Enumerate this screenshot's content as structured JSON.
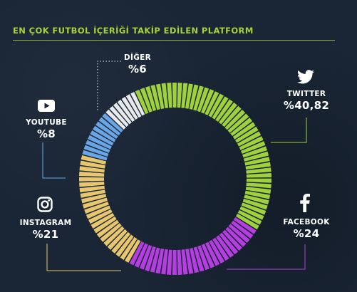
{
  "title": "EN ÇOK FUTBOL İÇERİĞİ TAKİP EDİLEN PLATFORM",
  "colors": {
    "background": "#1a2636",
    "accent": "#a6d33a",
    "twitter": "#9fd13c",
    "facebook": "#b43ee0",
    "instagram": "#e8c66e",
    "youtube": "#6aa6e6",
    "diger": "#e7e9ea"
  },
  "chart_data": {
    "type": "pie",
    "title": "EN ÇOK FUTBOL İÇERİĞİ TAKİP EDİLEN PLATFORM",
    "variant": "donut-segmented",
    "unit": "%",
    "slices": [
      {
        "name": "TWITTER",
        "value": 40.82,
        "label": "%40,82",
        "color": "#9fd13c",
        "icon": "twitter-icon"
      },
      {
        "name": "FACEBOOK",
        "value": 24,
        "label": "%24",
        "color": "#b43ee0",
        "icon": "facebook-icon"
      },
      {
        "name": "INSTAGRAM",
        "value": 21,
        "label": "%21",
        "color": "#e8c66e",
        "icon": "instagram-icon"
      },
      {
        "name": "YOUTUBE",
        "value": 8,
        "label": "%8",
        "color": "#6aa6e6",
        "icon": "youtube-icon"
      },
      {
        "name": "DİĞER",
        "value": 6,
        "label": "%6",
        "color": "#e7e9ea",
        "icon": ""
      }
    ]
  }
}
